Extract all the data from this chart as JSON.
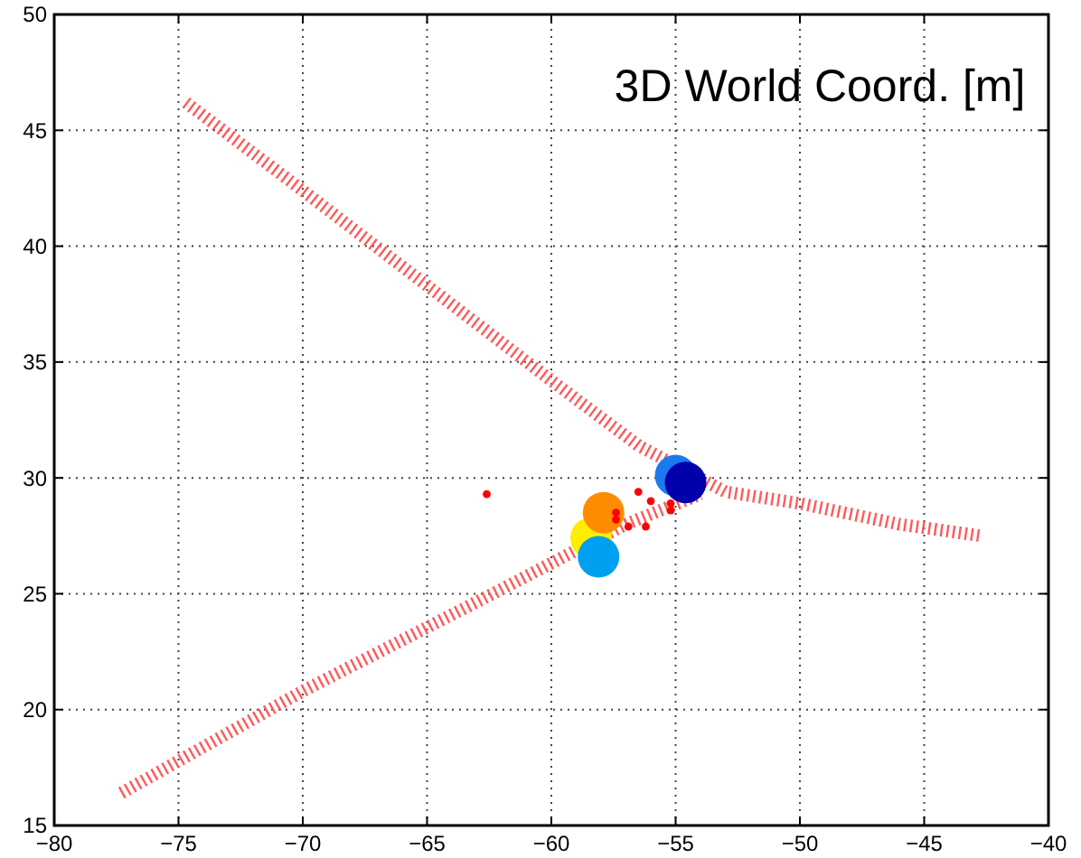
{
  "chart_data": {
    "type": "scatter",
    "annotations": [
      "3D World Coord. [m]"
    ],
    "xlim": [
      -80,
      -40
    ],
    "ylim": [
      15,
      50
    ],
    "xticks": [
      -80,
      -75,
      -70,
      -65,
      -60,
      -55,
      -50,
      -45,
      -40
    ],
    "yticks": [
      15,
      20,
      25,
      30,
      35,
      40,
      45,
      50
    ],
    "grid": true,
    "series": [
      {
        "type": "line",
        "line_style": "dashed",
        "marker": "none",
        "color": "#ff5a5a",
        "x": [
          -74.7,
          -70,
          -65,
          -60,
          -56.5,
          -53,
          -50,
          -46,
          -42.7
        ],
        "values": [
          46.2,
          42.4,
          38.3,
          34.2,
          31.4,
          29.4,
          28.9,
          28.0,
          27.5
        ]
      },
      {
        "type": "line",
        "line_style": "dashed",
        "marker": "none",
        "color": "#ff5a5a",
        "x": [
          -77.3,
          -70,
          -62,
          -57,
          -54
        ],
        "values": [
          16.4,
          20.8,
          25.2,
          28.0,
          29.3
        ]
      },
      {
        "type": "bubble",
        "marker": "circle",
        "color": "#ffee00",
        "x": [
          -58.4
        ],
        "values": [
          27.4
        ],
        "sizes": [
          1
        ]
      },
      {
        "type": "bubble",
        "marker": "circle",
        "color": "#ff8c00",
        "x": [
          -57.9
        ],
        "values": [
          28.5
        ],
        "sizes": [
          1
        ]
      },
      {
        "type": "bubble",
        "marker": "circle",
        "color": "#00a0f0",
        "x": [
          -58.1
        ],
        "values": [
          26.6
        ],
        "sizes": [
          1
        ]
      },
      {
        "type": "bubble",
        "marker": "circle",
        "color": "#1e78f0",
        "x": [
          -55.0
        ],
        "values": [
          30.1
        ],
        "sizes": [
          1
        ]
      },
      {
        "type": "bubble",
        "marker": "circle",
        "color": "#0000aa",
        "x": [
          -54.6
        ],
        "values": [
          29.8
        ],
        "sizes": [
          1
        ]
      },
      {
        "marker": "circle",
        "color": "#ff0000",
        "x": [
          -62.6,
          -56.5,
          -57.4,
          -57.4,
          -56.9,
          -56.2,
          -56.0,
          -55.2,
          -55.2
        ],
        "values": [
          29.3,
          29.4,
          28.5,
          28.2,
          27.9,
          27.9,
          29.0,
          28.9,
          28.6
        ]
      }
    ]
  }
}
